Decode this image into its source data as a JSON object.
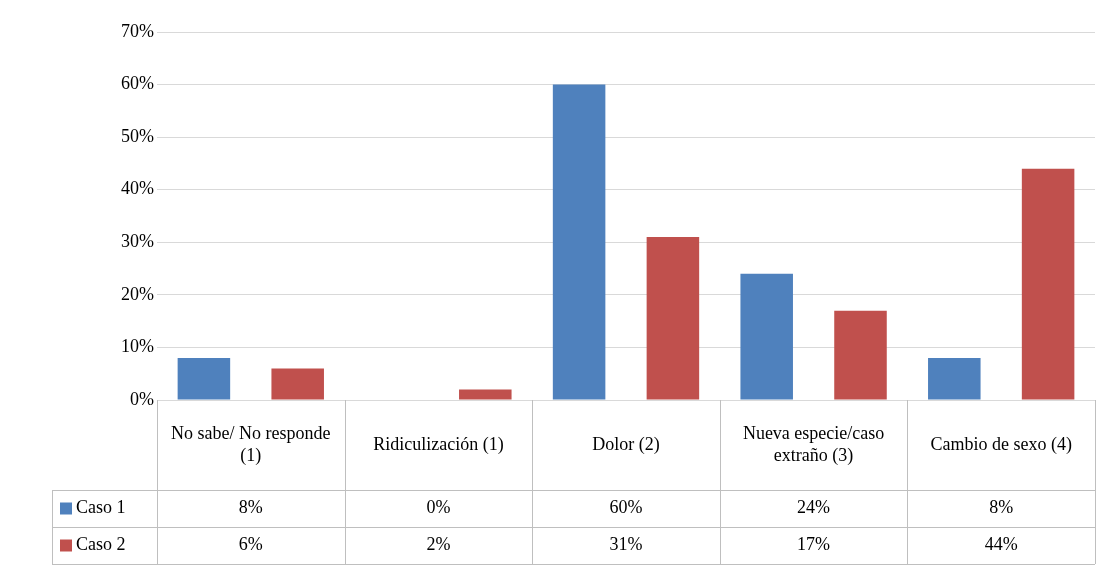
{
  "chart_data": {
    "type": "bar",
    "categories": [
      "No sabe/ No responde (1)",
      "Ridiculización (1)",
      "Dolor (2)",
      "Nueva especie/caso extraño (3)",
      "Cambio de sexo (4)"
    ],
    "series": [
      {
        "name": "Caso 1",
        "color": "#4f81bd",
        "values": [
          8,
          0,
          60,
          24,
          8
        ],
        "value_labels": [
          "8%",
          "0%",
          "60%",
          "24%",
          "8%"
        ]
      },
      {
        "name": "Caso 2",
        "color": "#c0504d",
        "values": [
          6,
          2,
          31,
          17,
          44
        ],
        "value_labels": [
          "6%",
          "2%",
          "31%",
          "17%",
          "44%"
        ]
      }
    ],
    "ylim": [
      0,
      70
    ],
    "yticks": [
      {
        "value": 0,
        "label": "0%"
      },
      {
        "value": 10,
        "label": "10%"
      },
      {
        "value": 20,
        "label": "20%"
      },
      {
        "value": 30,
        "label": "30%"
      },
      {
        "value": 40,
        "label": "40%"
      },
      {
        "value": 50,
        "label": "50%"
      },
      {
        "value": 60,
        "label": "60%"
      },
      {
        "value": 70,
        "label": "70%"
      }
    ],
    "grid": "y",
    "legend": "bottom left"
  }
}
